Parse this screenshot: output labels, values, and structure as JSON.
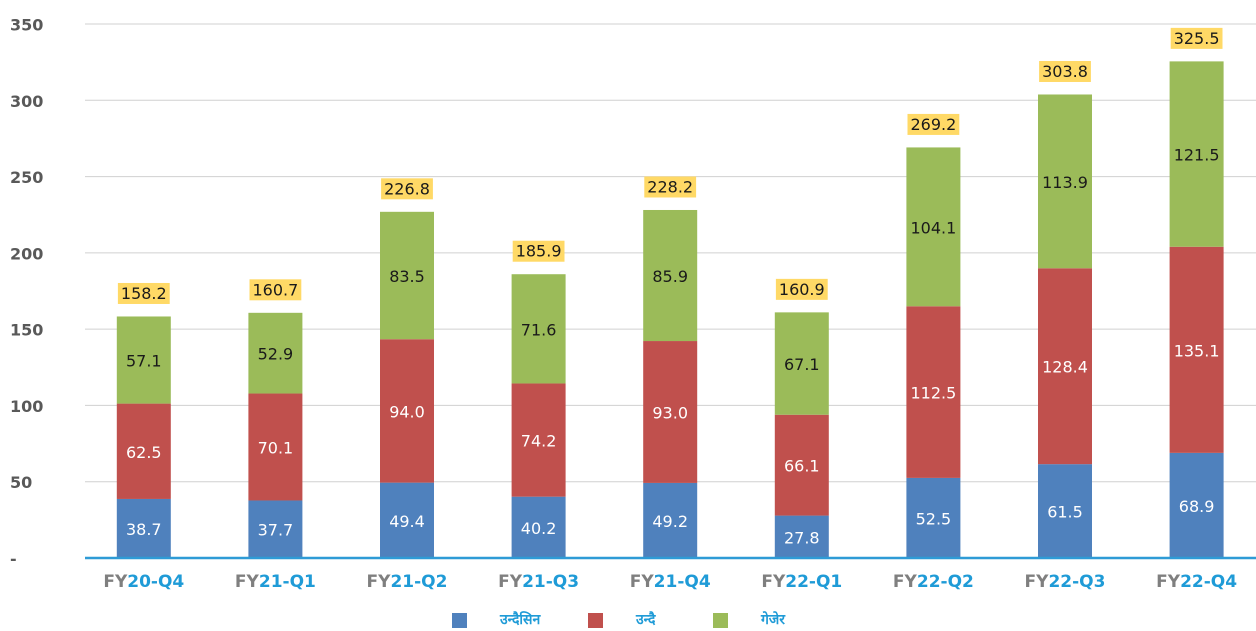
{
  "chart_data": {
    "type": "stacked_bar",
    "categories": [
      "FY20-Q4",
      "FY21-Q1",
      "FY21-Q2",
      "FY21-Q3",
      "FY21-Q4",
      "FY22-Q1",
      "FY22-Q2",
      "FY22-Q3",
      "FY22-Q4"
    ],
    "series": [
      {
        "name": "उन्दैसिन",
        "color": "#4f81bd",
        "label_color": "#ffffff",
        "values": [
          38.7,
          37.7,
          49.4,
          40.2,
          49.2,
          27.8,
          52.5,
          61.5,
          68.9
        ]
      },
      {
        "name": "उन्दै",
        "color": "#c0504d",
        "label_color": "#ffffff",
        "values": [
          62.5,
          70.1,
          94.0,
          74.2,
          93.0,
          66.1,
          112.5,
          128.4,
          135.1
        ],
        "value_labels": [
          "62.5",
          "70.1",
          "94.0",
          "74.2",
          "93.0",
          "66.1",
          "112.5",
          "128.4",
          "135.1"
        ]
      },
      {
        "name": "गेजेर",
        "color": "#9bbb59",
        "label_color": "#1a1a1a",
        "values": [
          57.1,
          52.9,
          83.5,
          71.6,
          85.9,
          67.1,
          104.1,
          113.9,
          121.5
        ]
      }
    ],
    "totals": [
      158.2,
      160.7,
      226.8,
      185.9,
      228.2,
      160.9,
      269.2,
      303.8,
      325.5
    ],
    "ylim": [
      0,
      350
    ],
    "yticks": [
      {
        "value": 0,
        "label": "-"
      },
      50,
      100,
      150,
      200,
      250,
      300,
      350
    ],
    "grid": true
  }
}
